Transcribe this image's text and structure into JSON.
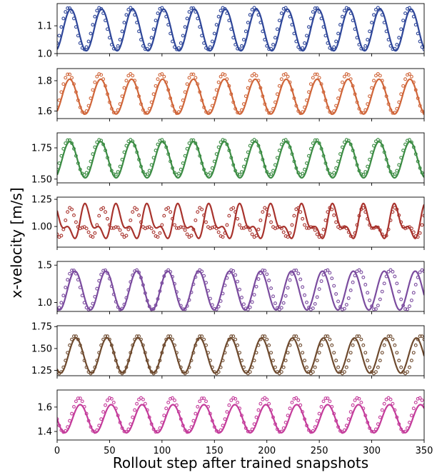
{
  "chart_data": {
    "type": "line",
    "xlabel": "Rollout step after trained snapshots",
    "ylabel": "x-velocity [m/s]",
    "xlim": [
      0,
      350
    ],
    "xticks": [
      "0",
      "50",
      "100",
      "150",
      "200",
      "250",
      "300",
      "350"
    ],
    "legend": "none",
    "grid": false,
    "marker_step": 2,
    "panels": [
      {
        "color": "#2e4699",
        "ylim": [
          1.0,
          1.18
        ],
        "yticks": [
          "1.0",
          "1.1"
        ],
        "ytick_values": [
          1.0,
          1.1
        ],
        "line": {
          "type": "periodic",
          "period": 29.5,
          "peak_x": 13,
          "mean": 1.085,
          "amplitude": 0.075
        },
        "markers": {
          "type": "periodic",
          "period": 29.5,
          "peak_x": 11,
          "mean": 1.09,
          "amplitude": 0.075
        }
      },
      {
        "color": "#d0663a",
        "ylim": [
          1.55,
          1.88
        ],
        "yticks": [
          "1.6",
          "1.8"
        ],
        "ytick_values": [
          1.6,
          1.8
        ],
        "line": {
          "type": "periodic",
          "period": 29.5,
          "peak_x": 12,
          "mean": 1.695,
          "amplitude": 0.115
        },
        "markers": {
          "type": "periodic",
          "period": 29.5,
          "peak_x": 11,
          "mean": 1.715,
          "amplitude": 0.13
        }
      },
      {
        "color": "#3c8c44",
        "ylim": [
          1.47,
          1.87
        ],
        "yticks": [
          "1.50",
          "1.75"
        ],
        "ytick_values": [
          1.5,
          1.75
        ],
        "line": {
          "type": "periodic",
          "period": 29.5,
          "peak_x": 12,
          "mean": 1.655,
          "amplitude": 0.145
        },
        "markers": {
          "type": "periodic",
          "period": 29.5,
          "peak_x": 11,
          "mean": 1.675,
          "amplitude": 0.14
        }
      },
      {
        "color": "#a8332d",
        "ylim": [
          0.81,
          1.27
        ],
        "yticks": [
          "1.00",
          "1.25"
        ],
        "ytick_values": [
          1.0,
          1.25
        ],
        "line": {
          "type": "multi",
          "period": 29.5,
          "peak_x": 28,
          "mean": 1.03,
          "amp1": 0.12,
          "amp2": 0.07
        },
        "markers": {
          "type": "multi",
          "period": 31.0,
          "peak_x": 14,
          "mean": 1.02,
          "amp1": 0.1,
          "amp2": 0.06
        }
      },
      {
        "color": "#7b4c9f",
        "ylim": [
          0.88,
          1.55
        ],
        "yticks": [
          "1.0",
          "1.5"
        ],
        "ytick_values": [
          1.0,
          1.5
        ],
        "line": {
          "type": "periodic",
          "period": 29.5,
          "peak_x": 17,
          "mean": 1.16,
          "amplitude": 0.26
        },
        "markers": {
          "type": "periodic",
          "period": 30.3,
          "peak_x": 15,
          "mean": 1.17,
          "amplitude": 0.265
        }
      },
      {
        "color": "#6e4a2e",
        "ylim": [
          1.19,
          1.76
        ],
        "yticks": [
          "1.25",
          "1.50",
          "1.75"
        ],
        "ytick_values": [
          1.25,
          1.5,
          1.75
        ],
        "line": {
          "type": "periodic",
          "period": 29.5,
          "peak_x": 18,
          "mean": 1.42,
          "amplitude": 0.2
        },
        "markers": {
          "type": "periodic",
          "period": 30.0,
          "peak_x": 17,
          "mean": 1.43,
          "amplitude": 0.215
        }
      },
      {
        "color": "#c43c9b",
        "ylim": [
          1.33,
          1.74
        ],
        "yticks": [
          "1.4",
          "1.6"
        ],
        "ytick_values": [
          1.4,
          1.6
        ],
        "line": {
          "type": "periodic",
          "period": 29.5,
          "peak_x": 22,
          "mean": 1.505,
          "amplitude": 0.115
        },
        "markers": {
          "type": "periodic",
          "period": 29.5,
          "peak_x": 21,
          "mean": 1.535,
          "amplitude": 0.14
        }
      }
    ]
  }
}
